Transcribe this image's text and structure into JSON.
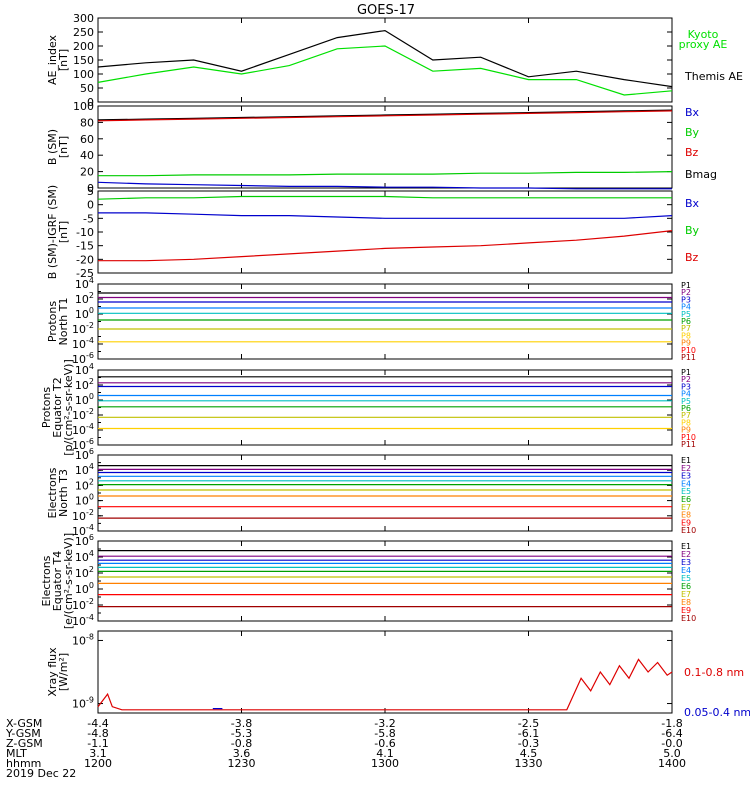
{
  "chart_data": {
    "title": "GOES-17",
    "type": "line",
    "x": [
      1200,
      1210,
      1220,
      1230,
      1240,
      1250,
      1300,
      1310,
      1320,
      1330,
      1340,
      1350,
      1400
    ],
    "x_ticks": [
      {
        "hhmm": "1200",
        "xgsm": "-4.4",
        "ygsm": "-4.8",
        "zgsm": "-1.1",
        "mlt": "3.1"
      },
      {
        "hhmm": "1230",
        "xgsm": "-3.8",
        "ygsm": "-5.3",
        "zgsm": "-0.8",
        "mlt": "3.6"
      },
      {
        "hhmm": "1300",
        "xgsm": "-3.2",
        "ygsm": "-5.8",
        "zgsm": "-0.6",
        "mlt": "4.1"
      },
      {
        "hhmm": "1330",
        "xgsm": "-2.5",
        "ygsm": "-6.1",
        "zgsm": "-0.3",
        "mlt": "4.5"
      },
      {
        "hhmm": "1400",
        "xgsm": "-1.8",
        "ygsm": "-6.4",
        "zgsm": "-0.0",
        "mlt": "5.0"
      }
    ],
    "footer": {
      "row_labels": [
        "X-GSM",
        "Y-GSM",
        "Z-GSM",
        "MLT",
        "hhmm"
      ],
      "date": "2019 Dec 22"
    },
    "panels": [
      {
        "id": "ae",
        "ylabel": [
          "AE_index",
          "[nT]"
        ],
        "yticks": [
          "300",
          "250",
          "200",
          "150",
          "100",
          "50",
          "0"
        ],
        "legend": [
          {
            "text": "Kyoto",
            "color": "#00e000"
          },
          {
            "text": "proxy AE",
            "color": "#00e000"
          },
          {
            "text": "Themis AE",
            "color": "#000000"
          }
        ],
        "series": [
          {
            "name": "Themis AE",
            "color": "#000000",
            "values": [
              125,
              140,
              150,
              110,
              170,
              230,
              255,
              150,
              160,
              90,
              110,
              80,
              55
            ]
          },
          {
            "name": "Kyoto proxy AE",
            "color": "#00e000",
            "values": [
              70,
              100,
              125,
              100,
              130,
              190,
              200,
              110,
              120,
              80,
              80,
              25,
              40
            ]
          }
        ]
      },
      {
        "id": "bsm",
        "ylabel": [
          "B (SM)",
          "[nT]"
        ],
        "yticks": [
          "100",
          "80",
          "60",
          "40",
          "20",
          "0"
        ],
        "legend": [
          {
            "text": "Bx",
            "color": "#0000cc"
          },
          {
            "text": "By",
            "color": "#00cc00"
          },
          {
            "text": "Bz",
            "color": "#dd0000"
          },
          {
            "text": "Bmag",
            "color": "#000000"
          }
        ],
        "series": [
          {
            "name": "Bmag",
            "color": "#000000",
            "values": [
              83,
              84,
              85,
              86,
              87,
              88,
              89,
              90,
              91,
              92,
              93,
              94,
              95
            ]
          },
          {
            "name": "Bz",
            "color": "#dd0000",
            "values": [
              82,
              83,
              84,
              85,
              86,
              87,
              88,
              89,
              90,
              91,
              92,
              93,
              94
            ]
          },
          {
            "name": "By",
            "color": "#00cc00",
            "values": [
              15,
              15,
              16,
              16,
              16,
              17,
              17,
              17,
              18,
              18,
              19,
              19,
              20
            ]
          },
          {
            "name": "Bx",
            "color": "#0000cc",
            "values": [
              7,
              5,
              4,
              3,
              2,
              2,
              1,
              1,
              0,
              0,
              -1,
              -1,
              -1
            ]
          }
        ]
      },
      {
        "id": "bigrf",
        "ylabel": [
          "B (SM)-IGRF (SM)",
          "[nT]"
        ],
        "yticks": [
          "5",
          "0",
          "-5",
          "-10",
          "-15",
          "-20",
          "-25"
        ],
        "legend": [
          {
            "text": "Bx",
            "color": "#0000cc"
          },
          {
            "text": "By",
            "color": "#00cc00"
          },
          {
            "text": "Bz",
            "color": "#dd0000"
          }
        ],
        "series": [
          {
            "name": "By",
            "color": "#00cc00",
            "values": [
              2,
              2.5,
              2.5,
              3,
              3,
              3,
              3,
              2.5,
              2.5,
              2.5,
              2.5,
              2.5,
              2.5
            ]
          },
          {
            "name": "Bx",
            "color": "#0000cc",
            "values": [
              -3,
              -3,
              -3.5,
              -4,
              -4,
              -4.5,
              -5,
              -5,
              -5,
              -5,
              -5,
              -5,
              -4
            ]
          },
          {
            "name": "Bz",
            "color": "#dd0000",
            "values": [
              -20.5,
              -20.5,
              -20,
              -19,
              -18,
              -17,
              -16,
              -15.5,
              -15,
              -14,
              -13,
              -11.5,
              -9.5
            ]
          }
        ]
      },
      {
        "id": "pn",
        "ylabel": [
          "Protons",
          "North T1"
        ],
        "yticks": [
          "10^4",
          "10^2",
          "10^0",
          "10^-2",
          "10^-4",
          "10^-6"
        ],
        "legend": [
          {
            "text": "P1",
            "color": "#000000"
          },
          {
            "text": "P2",
            "color": "#800080"
          },
          {
            "text": "P3",
            "color": "#0000cc"
          },
          {
            "text": "P4",
            "color": "#0080ff"
          },
          {
            "text": "P5",
            "color": "#00c0c0"
          },
          {
            "text": "P6",
            "color": "#00a000"
          },
          {
            "text": "P7",
            "color": "#c0c000"
          },
          {
            "text": "P8",
            "color": "#ffd000"
          },
          {
            "text": "P9",
            "color": "#ff8000"
          },
          {
            "text": "P10",
            "color": "#ff0000"
          },
          {
            "text": "P11",
            "color": "#a00000"
          }
        ],
        "series": [
          {
            "name": "P1",
            "color": "#000000",
            "logValue": 2.8
          },
          {
            "name": "P2",
            "color": "#800080",
            "logValue": 2.2
          },
          {
            "name": "P3",
            "color": "#0000cc",
            "logValue": 1.6
          },
          {
            "name": "P4",
            "color": "#0080ff",
            "logValue": 0.8
          },
          {
            "name": "P5",
            "color": "#00c0c0",
            "logValue": 0.1
          },
          {
            "name": "P6",
            "color": "#00a000",
            "logValue": -0.8
          },
          {
            "name": "P7",
            "color": "#c0c000",
            "logValue": -2.0
          },
          {
            "name": "P8",
            "color": "#ffd000",
            "logValue": -3.7
          }
        ]
      },
      {
        "id": "pe",
        "ylabel": [
          "Protons",
          "Equator T2",
          "[p/(cm²-s-sr-keV)]"
        ],
        "yticks": [
          "10^4",
          "10^2",
          "10^0",
          "10^-2",
          "10^-4",
          "10^-6"
        ],
        "legend": [
          {
            "text": "P1",
            "color": "#000000"
          },
          {
            "text": "P2",
            "color": "#800080"
          },
          {
            "text": "P3",
            "color": "#0000cc"
          },
          {
            "text": "P4",
            "color": "#0080ff"
          },
          {
            "text": "P5",
            "color": "#00c0c0"
          },
          {
            "text": "P6",
            "color": "#00a000"
          },
          {
            "text": "P7",
            "color": "#c0c000"
          },
          {
            "text": "P8",
            "color": "#ffd000"
          },
          {
            "text": "P9",
            "color": "#ff8000"
          },
          {
            "text": "P10",
            "color": "#ff0000"
          },
          {
            "text": "P11",
            "color": "#a00000"
          }
        ],
        "series": [
          {
            "name": "P1",
            "color": "#000000",
            "logValue": 3.1
          },
          {
            "name": "P2",
            "color": "#800080",
            "logValue": 2.3
          },
          {
            "name": "P3",
            "color": "#0000cc",
            "logValue": 1.8
          },
          {
            "name": "P4",
            "color": "#0080ff",
            "logValue": 0.6
          },
          {
            "name": "P5",
            "color": "#00c0c0",
            "logValue": -0.1
          },
          {
            "name": "P6",
            "color": "#00a000",
            "logValue": -0.9
          },
          {
            "name": "P7",
            "color": "#c0c000",
            "logValue": -2.3
          },
          {
            "name": "P8",
            "color": "#ffd000",
            "logValue": -3.8
          }
        ]
      },
      {
        "id": "en",
        "ylabel": [
          "Electrons",
          "North T3"
        ],
        "yticks": [
          "10^6",
          "10^4",
          "10^2",
          "10^0",
          "10^-2",
          "10^-4"
        ],
        "legend": [
          {
            "text": "E1",
            "color": "#000000"
          },
          {
            "text": "E2",
            "color": "#800080"
          },
          {
            "text": "E3",
            "color": "#0000cc"
          },
          {
            "text": "E4",
            "color": "#0080ff"
          },
          {
            "text": "E5",
            "color": "#00c0c0"
          },
          {
            "text": "E6",
            "color": "#00a000"
          },
          {
            "text": "E7",
            "color": "#c0c000"
          },
          {
            "text": "E8",
            "color": "#ff8000"
          },
          {
            "text": "E9",
            "color": "#ff0000"
          },
          {
            "text": "E10",
            "color": "#a00000"
          }
        ],
        "series": [
          {
            "name": "E1",
            "color": "#000000",
            "logValue": 4.6
          },
          {
            "name": "E2",
            "color": "#800080",
            "logValue": 4.1
          },
          {
            "name": "E3",
            "color": "#0000cc",
            "logValue": 3.7
          },
          {
            "name": "E4",
            "color": "#0080ff",
            "logValue": 3.2
          },
          {
            "name": "E5",
            "color": "#00c0c0",
            "logValue": 2.6
          },
          {
            "name": "E6",
            "color": "#00a000",
            "logValue": 2.1
          },
          {
            "name": "E7",
            "color": "#c0c000",
            "logValue": 1.4
          },
          {
            "name": "E8",
            "color": "#ff8000",
            "logValue": 0.6
          },
          {
            "name": "E9",
            "color": "#ff0000",
            "logValue": -0.8
          },
          {
            "name": "E10",
            "color": "#a00000",
            "logValue": -2.3
          }
        ]
      },
      {
        "id": "ee",
        "ylabel": [
          "Electrons",
          "Equator T4",
          "[e/(cm²-s-sr-keV)]"
        ],
        "yticks": [
          "10^6",
          "10^4",
          "10^2",
          "10^0",
          "10^-2",
          "10^-4"
        ],
        "legend": [
          {
            "text": "E1",
            "color": "#000000"
          },
          {
            "text": "E2",
            "color": "#800080"
          },
          {
            "text": "E3",
            "color": "#0000cc"
          },
          {
            "text": "E4",
            "color": "#0080ff"
          },
          {
            "text": "E5",
            "color": "#00c0c0"
          },
          {
            "text": "E6",
            "color": "#00a000"
          },
          {
            "text": "E7",
            "color": "#c0c000"
          },
          {
            "text": "E8",
            "color": "#ff8000"
          },
          {
            "text": "E9",
            "color": "#ff0000"
          },
          {
            "text": "E10",
            "color": "#a00000"
          }
        ],
        "series": [
          {
            "name": "E1",
            "color": "#000000",
            "logValue": 4.8
          },
          {
            "name": "E2",
            "color": "#800080",
            "logValue": 4.1
          },
          {
            "name": "E3",
            "color": "#0000cc",
            "logValue": 3.6
          },
          {
            "name": "E4",
            "color": "#0080ff",
            "logValue": 3.2
          },
          {
            "name": "E5",
            "color": "#00c0c0",
            "logValue": 2.7
          },
          {
            "name": "E6",
            "color": "#00a000",
            "logValue": 2.2
          },
          {
            "name": "E7",
            "color": "#c0c000",
            "logValue": 1.5
          },
          {
            "name": "E8",
            "color": "#ff8000",
            "logValue": 0.7
          },
          {
            "name": "E9",
            "color": "#ff0000",
            "logValue": -0.7
          },
          {
            "name": "E10",
            "color": "#a00000",
            "logValue": -2.2
          }
        ]
      },
      {
        "id": "xray",
        "ylabel": [
          "Xray flux",
          "[W/m²]"
        ],
        "yticks": [
          "10^-8",
          "10^-9"
        ],
        "legend": [
          {
            "text": "0.1-0.8 nm",
            "color": "#dd0000"
          },
          {
            "text": "0.05-0.4 nm",
            "color": "#0000cc"
          }
        ],
        "series": [
          {
            "name": "0.1-0.8 nm",
            "color": "#dd0000",
            "x": [
              1200,
              1202,
              1203,
              1205,
              1255,
              1338,
              1341,
              1343,
              1345,
              1347,
              1349,
              1351,
              1353,
              1355,
              1357,
              1359,
              1400
            ],
            "logValue": [
              -9.05,
              -8.85,
              -9.05,
              -9.1,
              -9.1,
              -9.1,
              -8.6,
              -8.8,
              -8.5,
              -8.7,
              -8.4,
              -8.6,
              -8.3,
              -8.5,
              -8.35,
              -8.55,
              -8.5
            ]
          },
          {
            "name": "0.05-0.4 nm",
            "color": "#0000cc",
            "x": [
              1224,
              1226
            ],
            "logValue": [
              -9.08,
              -9.08
            ]
          }
        ]
      }
    ]
  }
}
